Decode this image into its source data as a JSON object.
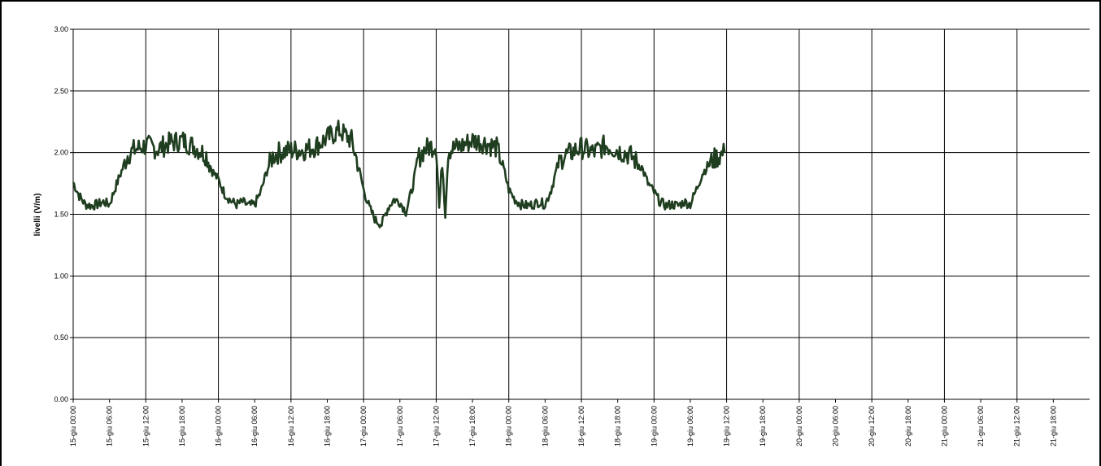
{
  "chart_data": {
    "type": "line",
    "title": "",
    "xlabel": "",
    "ylabel": "livelli (V/m)",
    "ylim": [
      0,
      3
    ],
    "y_ticks": [
      "0.00",
      "0.50",
      "1.00",
      "1.50",
      "2.00",
      "2.50",
      "3.00"
    ],
    "y_tick_values": [
      0,
      0.5,
      1,
      1.5,
      2,
      2.5,
      3
    ],
    "xlim": [
      "15-giu 00:00",
      "22-giu 00:00"
    ],
    "x_ticks": [
      "15-giu 00:00",
      "15-giu 06:00",
      "15-giu 12:00",
      "15-giu 18:00",
      "16-giu 00:00",
      "16-giu 06:00",
      "16-giu 12:00",
      "16-giu 18:00",
      "17-giu 00:00",
      "17-giu 06:00",
      "17-giu 12:00",
      "17-giu 18:00",
      "18-giu 00:00",
      "18-giu 06:00",
      "18-giu 12:00",
      "18-giu 18:00",
      "19-giu 00:00",
      "19-giu 06:00",
      "19-giu 12:00",
      "19-giu 18:00",
      "20-giu 00:00",
      "20-giu 06:00",
      "20-giu 12:00",
      "20-giu 18:00",
      "21-giu 00:00",
      "21-giu 06:00",
      "21-giu 12:00",
      "21-giu 18:00"
    ],
    "grid": true,
    "legend": "none",
    "line_color": "#1f3d1f",
    "series": [
      {
        "x": [
          "15-giu 00:00",
          "15-giu 01:00",
          "15-giu 02:00",
          "15-giu 03:00",
          "15-giu 04:00",
          "15-giu 05:00",
          "15-giu 06:00",
          "15-giu 07:00",
          "15-giu 08:00",
          "15-giu 09:00",
          "15-giu 10:00",
          "15-giu 11:00",
          "15-giu 12:00",
          "15-giu 14:00",
          "15-giu 16:00",
          "15-giu 18:00",
          "15-giu 20:00",
          "15-giu 22:00",
          "15-giu 23:00",
          "16-giu 00:00",
          "16-giu 01:00",
          "16-giu 02:00",
          "16-giu 03:00",
          "16-giu 04:00",
          "16-giu 05:00",
          "16-giu 06:00",
          "16-giu 07:00",
          "16-giu 08:00",
          "16-giu 09:00",
          "16-giu 10:00",
          "16-giu 11:00",
          "16-giu 12:00",
          "16-giu 14:00",
          "16-giu 16:00",
          "16-giu 18:00",
          "16-giu 20:00",
          "16-giu 22:00",
          "16-giu 23:00",
          "17-giu 00:00",
          "17-giu 01:00",
          "17-giu 02:00",
          "17-giu 03:00",
          "17-giu 04:00",
          "17-giu 05:00",
          "17-giu 06:00",
          "17-giu 07:00",
          "17-giu 08:00",
          "17-giu 09:00",
          "17-giu 10:00",
          "17-giu 11:00",
          "17-giu 12:00",
          "17-giu 12:30",
          "17-giu 13:00",
          "17-giu 13:30",
          "17-giu 14:00",
          "17-giu 16:00",
          "17-giu 18:00",
          "17-giu 20:00",
          "17-giu 22:00",
          "17-giu 23:00",
          "18-giu 00:00",
          "18-giu 01:00",
          "18-giu 02:00",
          "18-giu 03:00",
          "18-giu 04:00",
          "18-giu 05:00",
          "18-giu 06:00",
          "18-giu 07:00",
          "18-giu 08:00",
          "18-giu 09:00",
          "18-giu 10:00",
          "18-giu 11:00",
          "18-giu 12:00",
          "18-giu 14:00",
          "18-giu 16:00",
          "18-giu 18:00",
          "18-giu 20:00",
          "18-giu 22:00",
          "18-giu 23:00",
          "19-giu 00:00",
          "19-giu 01:00",
          "19-giu 02:00",
          "19-giu 03:00",
          "19-giu 04:00",
          "19-giu 05:00",
          "19-giu 06:00",
          "19-giu 07:00",
          "19-giu 08:00",
          "19-giu 09:00",
          "19-giu 10:00",
          "19-giu 11:00",
          "19-giu 11:40"
        ],
        "y": [
          1.76,
          1.65,
          1.58,
          1.57,
          1.58,
          1.6,
          1.58,
          1.72,
          1.85,
          1.98,
          2.02,
          2.04,
          2.06,
          2.03,
          2.08,
          2.1,
          2.05,
          1.98,
          1.85,
          1.78,
          1.67,
          1.61,
          1.58,
          1.6,
          1.57,
          1.58,
          1.68,
          1.85,
          1.97,
          2.0,
          2.01,
          2.02,
          2.02,
          2.05,
          2.12,
          2.18,
          2.1,
          1.92,
          1.7,
          1.55,
          1.45,
          1.42,
          1.55,
          1.62,
          1.6,
          1.52,
          1.7,
          1.95,
          2.02,
          2.05,
          2.06,
          1.55,
          1.95,
          1.5,
          2.02,
          2.05,
          2.1,
          2.08,
          2.04,
          1.9,
          1.7,
          1.62,
          1.58,
          1.57,
          1.58,
          1.6,
          1.58,
          1.7,
          1.88,
          1.97,
          1.99,
          2.02,
          2.04,
          2.0,
          2.06,
          2.02,
          1.98,
          1.88,
          1.75,
          1.68,
          1.6,
          1.57,
          1.58,
          1.57,
          1.6,
          1.58,
          1.7,
          1.83,
          1.9,
          1.95,
          1.98,
          2.0
        ]
      }
    ]
  }
}
